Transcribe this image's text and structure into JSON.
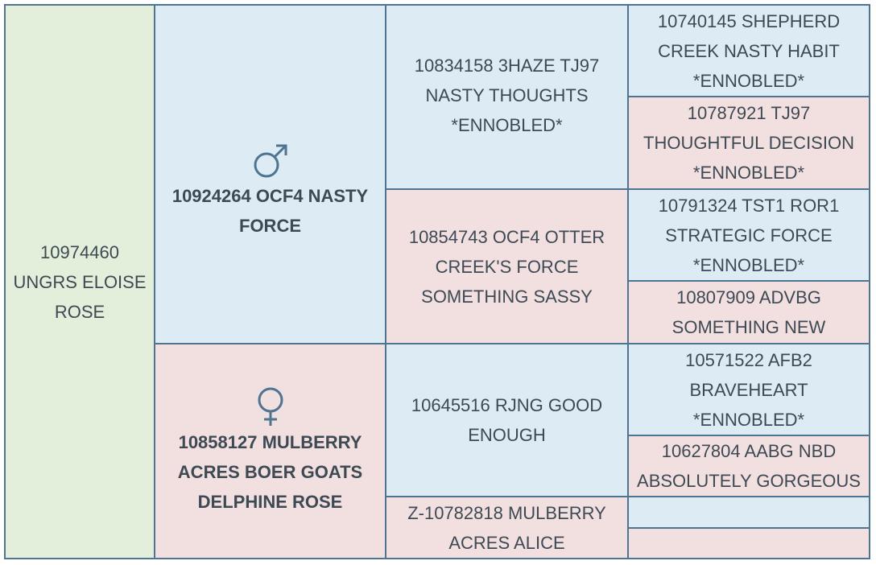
{
  "subject": "10974460 UNGRS ELOISE ROSE",
  "sire": "10924264 OCF4 NASTY FORCE",
  "dam": "10858127 MULBERRY ACRES BOER GOATS DELPHINE ROSE",
  "grandparents": [
    "10834158 3HAZE TJ97 NASTY THOUGHTS *ENNOBLED*",
    "10854743 OCF4 OTTER CREEK'S FORCE SOMETHING SASSY",
    "10645516 RJNG GOOD ENOUGH",
    "Z-10782818 MULBERRY ACRES ALICE"
  ],
  "great_grandparents": [
    "10740145 SHEPHERD CREEK NASTY HABIT *ENNOBLED*",
    "10787921 TJ97 THOUGHTFUL DECISION *ENNOBLED*",
    "10791324 TST1 ROR1 STRATEGIC FORCE *ENNOBLED*",
    "10807909 ADVBG SOMETHING NEW",
    "10571522 AFB2 BRAVEHEART *ENNOBLED*",
    "10627804 AABG NBD ABSOLUTELY GORGEOUS"
  ]
}
